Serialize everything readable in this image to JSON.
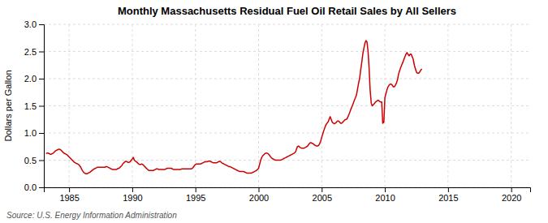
{
  "chart_data": {
    "type": "line",
    "title": "Monthly Massachusetts Residual Fuel Oil Retail Sales by All Sellers",
    "ylabel": "Dollars per Gallon",
    "annotation": "Source: U.S. Energy Information Administration",
    "color": "#cc0000",
    "grid": true,
    "xlim": [
      1983.0,
      2021.5
    ],
    "xticks": [
      1985,
      1990,
      1995,
      2000,
      2005,
      2010,
      2015,
      2020
    ],
    "ylim": [
      0.0,
      3.0
    ],
    "yticks": [
      {
        "value": 0.0,
        "label": "0.0"
      },
      0.5,
      {
        "value": 1.0,
        "label": "1.0"
      },
      1.5,
      {
        "value": 2.0,
        "label": "2.0"
      },
      2.5,
      {
        "value": 3.0,
        "label": "3.0"
      }
    ],
    "x": [
      1983.17,
      1983.25,
      1983.33,
      1983.42,
      1983.5,
      1983.58,
      1983.67,
      1983.75,
      1983.83,
      1983.92,
      1984.0,
      1984.08,
      1984.17,
      1984.25,
      1984.33,
      1984.42,
      1984.5,
      1984.58,
      1984.67,
      1984.75,
      1984.83,
      1984.92,
      1985.0,
      1985.08,
      1985.17,
      1985.25,
      1985.33,
      1985.42,
      1985.5,
      1985.58,
      1985.67,
      1985.75,
      1985.83,
      1985.92,
      1986.0,
      1986.08,
      1986.17,
      1986.25,
      1986.33,
      1986.42,
      1986.5,
      1986.58,
      1986.67,
      1986.75,
      1986.83,
      1986.92,
      1987.0,
      1987.08,
      1987.17,
      1987.25,
      1987.33,
      1987.42,
      1987.5,
      1987.58,
      1987.67,
      1987.75,
      1987.83,
      1987.92,
      1988.0,
      1988.08,
      1988.17,
      1988.25,
      1988.33,
      1988.42,
      1988.5,
      1988.58,
      1988.67,
      1988.75,
      1988.83,
      1988.92,
      1989.0,
      1989.08,
      1989.17,
      1989.25,
      1989.33,
      1989.42,
      1989.5,
      1989.58,
      1989.67,
      1989.75,
      1989.83,
      1989.92,
      1990.0,
      1990.08,
      1990.17,
      1990.25,
      1990.33,
      1990.42,
      1990.5,
      1990.58,
      1990.67,
      1990.75,
      1990.83,
      1990.92,
      1991.0,
      1991.08,
      1991.17,
      1991.25,
      1991.33,
      1991.42,
      1991.5,
      1991.58,
      1991.67,
      1991.75,
      1991.83,
      1991.92,
      1992.0,
      1992.08,
      1992.17,
      1992.25,
      1992.33,
      1992.42,
      1992.5,
      1992.58,
      1992.67,
      1992.75,
      1992.83,
      1992.92,
      1993.0,
      1993.08,
      1993.17,
      1993.25,
      1993.33,
      1993.42,
      1993.5,
      1993.58,
      1993.67,
      1993.75,
      1993.83,
      1993.92,
      1994.0,
      1994.08,
      1994.17,
      1994.25,
      1994.33,
      1994.42,
      1994.5,
      1994.58,
      1994.67,
      1994.75,
      1994.83,
      1994.92,
      1995.0,
      1995.08,
      1995.17,
      1995.25,
      1995.33,
      1995.42,
      1995.5,
      1995.58,
      1995.67,
      1995.75,
      1995.83,
      1995.92,
      1996.0,
      1996.08,
      1996.17,
      1996.25,
      1996.33,
      1996.42,
      1996.5,
      1996.58,
      1996.67,
      1996.75,
      1996.83,
      1996.92,
      1997.0,
      1997.08,
      1997.17,
      1997.25,
      1997.33,
      1997.42,
      1997.5,
      1997.58,
      1997.67,
      1997.75,
      1997.83,
      1997.92,
      1998.0,
      1998.08,
      1998.17,
      1998.25,
      1998.33,
      1998.42,
      1998.5,
      1998.58,
      1998.67,
      1998.75,
      1998.83,
      1998.92,
      1999.0,
      1999.08,
      1999.17,
      1999.25,
      1999.33,
      1999.42,
      1999.5,
      1999.58,
      1999.67,
      1999.75,
      1999.83,
      1999.92,
      2000.0,
      2000.08,
      2000.17,
      2000.25,
      2000.33,
      2000.42,
      2000.5,
      2000.58,
      2000.67,
      2000.75,
      2000.83,
      2000.92,
      2001.0,
      2001.08,
      2001.17,
      2001.25,
      2001.33,
      2001.42,
      2001.5,
      2001.58,
      2001.67,
      2001.75,
      2001.83,
      2001.92,
      2002.0,
      2002.08,
      2002.17,
      2002.25,
      2002.33,
      2002.42,
      2002.5,
      2002.58,
      2002.67,
      2002.75,
      2002.83,
      2002.92,
      2003.0,
      2003.08,
      2003.17,
      2003.25,
      2003.33,
      2003.42,
      2003.5,
      2003.58,
      2003.67,
      2003.75,
      2003.83,
      2003.92,
      2004.0,
      2004.08,
      2004.17,
      2004.25,
      2004.33,
      2004.42,
      2004.5,
      2004.58,
      2004.67,
      2004.75,
      2004.83,
      2004.92,
      2005.0,
      2005.08,
      2005.17,
      2005.25,
      2005.33,
      2005.42,
      2005.5,
      2005.58,
      2005.67,
      2005.75,
      2005.83,
      2005.92,
      2006.0,
      2006.08,
      2006.17,
      2006.25,
      2006.33,
      2006.42,
      2006.5,
      2006.58,
      2006.67,
      2006.75,
      2006.83,
      2006.92,
      2007.0,
      2007.08,
      2007.17,
      2007.25,
      2007.33,
      2007.42,
      2007.5,
      2007.58,
      2007.67,
      2007.75,
      2007.83,
      2007.92,
      2008.0,
      2008.08,
      2008.17,
      2008.25,
      2008.33,
      2008.42,
      2008.5,
      2008.58,
      2008.67,
      2008.75,
      2008.83,
      2008.92,
      2009.0,
      2009.08,
      2009.17,
      2009.25,
      2009.33,
      2009.42,
      2009.5,
      2009.58,
      2009.67,
      2009.75,
      2009.83,
      2009.92,
      2010.0,
      2010.08,
      2010.17,
      2010.25,
      2010.33,
      2010.42,
      2010.5,
      2010.58,
      2010.67,
      2010.75,
      2010.83,
      2010.92,
      2011.0,
      2011.08,
      2011.17,
      2011.25,
      2011.33,
      2011.42,
      2011.5,
      2011.58,
      2011.67,
      2011.75,
      2011.83,
      2011.92,
      2012.0,
      2012.08,
      2012.17,
      2012.25,
      2012.33,
      2012.42,
      2012.5,
      2012.58,
      2012.67,
      2012.75,
      2012.83,
      2012.92
    ],
    "values": [
      0.62,
      0.63,
      0.63,
      0.62,
      0.61,
      0.61,
      0.62,
      0.63,
      0.65,
      0.67,
      0.68,
      0.69,
      0.7,
      0.7,
      0.69,
      0.67,
      0.65,
      0.63,
      0.62,
      0.61,
      0.6,
      0.58,
      0.56,
      0.54,
      0.52,
      0.5,
      0.48,
      0.46,
      0.45,
      0.44,
      0.43,
      0.42,
      0.4,
      0.37,
      0.33,
      0.3,
      0.27,
      0.26,
      0.25,
      0.25,
      0.26,
      0.27,
      0.28,
      0.3,
      0.31,
      0.33,
      0.34,
      0.35,
      0.36,
      0.37,
      0.37,
      0.37,
      0.37,
      0.37,
      0.37,
      0.37,
      0.37,
      0.38,
      0.38,
      0.37,
      0.36,
      0.35,
      0.34,
      0.33,
      0.33,
      0.33,
      0.33,
      0.33,
      0.34,
      0.35,
      0.36,
      0.38,
      0.4,
      0.43,
      0.45,
      0.47,
      0.48,
      0.47,
      0.46,
      0.46,
      0.47,
      0.5,
      0.52,
      0.55,
      0.5,
      0.48,
      0.47,
      0.45,
      0.43,
      0.42,
      0.42,
      0.43,
      0.42,
      0.4,
      0.38,
      0.36,
      0.34,
      0.32,
      0.31,
      0.31,
      0.31,
      0.31,
      0.31,
      0.32,
      0.33,
      0.34,
      0.34,
      0.33,
      0.33,
      0.33,
      0.33,
      0.33,
      0.33,
      0.33,
      0.34,
      0.35,
      0.35,
      0.35,
      0.35,
      0.35,
      0.34,
      0.33,
      0.33,
      0.33,
      0.33,
      0.33,
      0.33,
      0.33,
      0.33,
      0.34,
      0.34,
      0.34,
      0.34,
      0.34,
      0.34,
      0.34,
      0.34,
      0.34,
      0.34,
      0.35,
      0.37,
      0.4,
      0.42,
      0.43,
      0.43,
      0.43,
      0.43,
      0.43,
      0.44,
      0.45,
      0.46,
      0.47,
      0.47,
      0.47,
      0.48,
      0.48,
      0.48,
      0.47,
      0.46,
      0.45,
      0.45,
      0.45,
      0.45,
      0.46,
      0.47,
      0.48,
      0.47,
      0.45,
      0.44,
      0.43,
      0.42,
      0.41,
      0.4,
      0.39,
      0.38,
      0.38,
      0.37,
      0.36,
      0.35,
      0.34,
      0.33,
      0.32,
      0.31,
      0.3,
      0.29,
      0.29,
      0.29,
      0.29,
      0.29,
      0.28,
      0.27,
      0.26,
      0.26,
      0.26,
      0.26,
      0.26,
      0.27,
      0.28,
      0.29,
      0.3,
      0.31,
      0.33,
      0.35,
      0.42,
      0.5,
      0.55,
      0.58,
      0.6,
      0.62,
      0.63,
      0.63,
      0.62,
      0.6,
      0.57,
      0.55,
      0.53,
      0.52,
      0.51,
      0.5,
      0.5,
      0.5,
      0.5,
      0.5,
      0.5,
      0.51,
      0.52,
      0.53,
      0.54,
      0.55,
      0.56,
      0.57,
      0.58,
      0.59,
      0.6,
      0.61,
      0.62,
      0.63,
      0.65,
      0.7,
      0.75,
      0.76,
      0.74,
      0.73,
      0.72,
      0.72,
      0.72,
      0.73,
      0.74,
      0.75,
      0.77,
      0.8,
      0.82,
      0.82,
      0.81,
      0.8,
      0.78,
      0.77,
      0.76,
      0.76,
      0.77,
      0.8,
      0.85,
      0.92,
      0.98,
      1.05,
      1.1,
      1.15,
      1.18,
      1.2,
      1.25,
      1.3,
      1.25,
      1.2,
      1.18,
      1.17,
      1.18,
      1.2,
      1.22,
      1.22,
      1.2,
      1.18,
      1.18,
      1.2,
      1.22,
      1.24,
      1.25,
      1.26,
      1.3,
      1.35,
      1.4,
      1.45,
      1.5,
      1.55,
      1.6,
      1.65,
      1.7,
      1.8,
      1.92,
      2.0,
      2.15,
      2.3,
      2.45,
      2.55,
      2.65,
      2.7,
      2.68,
      2.5,
      2.2,
      1.8,
      1.55,
      1.5,
      1.52,
      1.54,
      1.57,
      1.58,
      1.6,
      1.6,
      1.58,
      1.57,
      1.57,
      1.18,
      1.2,
      1.65,
      1.72,
      1.8,
      1.85,
      1.88,
      1.9,
      1.9,
      1.88,
      1.85,
      1.85,
      1.88,
      1.92,
      1.98,
      2.08,
      2.15,
      2.2,
      2.25,
      2.3,
      2.35,
      2.4,
      2.45,
      2.48,
      2.45,
      2.42,
      2.45,
      2.45,
      2.4,
      2.35,
      2.25,
      2.18,
      2.12,
      2.1,
      2.1,
      2.12,
      2.15,
      2.18
    ]
  }
}
